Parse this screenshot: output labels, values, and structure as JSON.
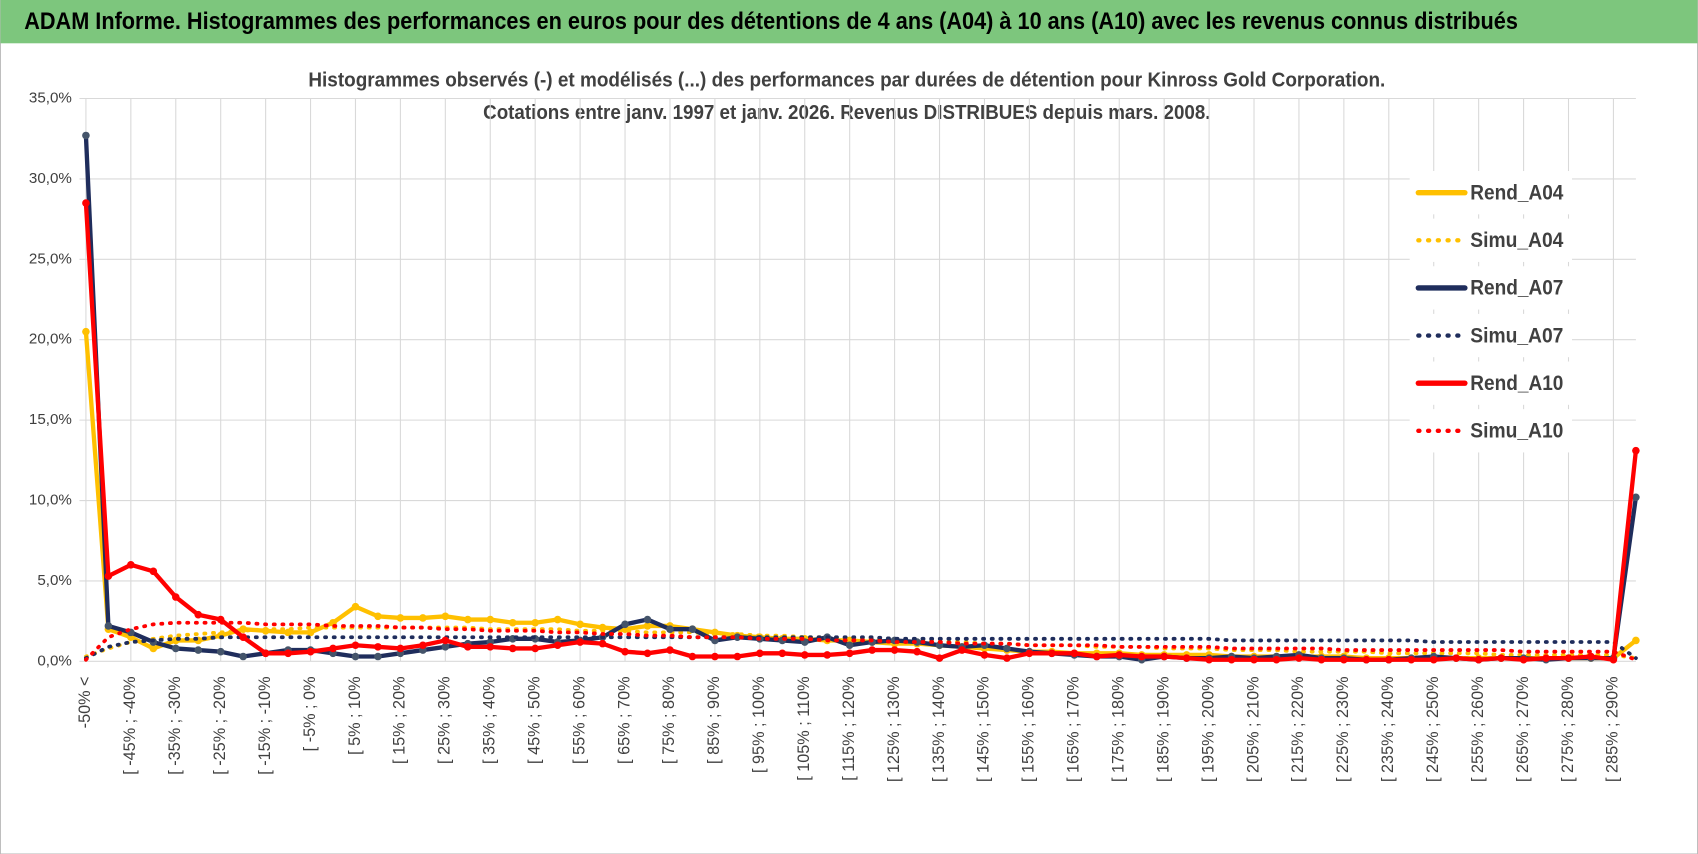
{
  "header": {
    "title": "ADAM Informe. Histogrammes des performances en euros pour des détentions de 4 ans (A04) à 10 ans (A10) avec les revenus connus distribués"
  },
  "chart_data": {
    "type": "line",
    "title": "Histogrammes observés (-) et modélisés (...) des performances par durées de détention pour Kinross Gold Corporation.",
    "subtitle": "Cotations entre janv. 1997 et janv. 2026. Revenus DISTRIBUES depuis mars. 2008.",
    "categories": [
      "-50% <",
      null,
      "[ -45% ; -40%",
      null,
      "[ -35% ; -30%",
      null,
      "[ -25% ; -20%",
      null,
      "[ -15% ; -10%",
      null,
      "[ -5% ; 0%",
      null,
      "[ 5% ; 10%",
      null,
      "[ 15% ; 20%",
      null,
      "[ 25% ; 30%",
      null,
      "[ 35% ; 40%",
      null,
      "[ 45% ; 50%",
      null,
      "[ 55% ; 60%",
      null,
      "[ 65% ; 70%",
      null,
      "[ 75% ; 80%",
      null,
      "[ 85% ; 90%",
      null,
      "[ 95% ; 100%",
      null,
      "[ 105% ; 110%",
      null,
      "[ 115% ; 120%",
      null,
      "[ 125% ; 130%",
      null,
      "[ 135% ; 140%",
      null,
      "[ 145% ; 150%",
      null,
      "[ 155% ; 160%",
      null,
      "[ 165% ; 170%",
      null,
      "[ 175% ; 180%",
      null,
      "[ 185% ; 190%",
      null,
      "[ 195% ; 200%",
      null,
      "[ 205% ; 210%",
      null,
      "[ 215% ; 220%",
      null,
      "[ 225% ; 230%",
      null,
      "[ 235% ; 240%",
      null,
      "[ 245% ; 250%",
      null,
      "[ 255% ; 260%",
      null,
      "[ 265% ; 270%",
      null,
      "[ 275% ; 280%",
      null,
      "[ 285% ; 290%",
      null
    ],
    "series": [
      {
        "name": "Rend_A04",
        "color": "#ffc000",
        "style": "solid",
        "values": [
          20.5,
          2.0,
          1.5,
          0.8,
          1.3,
          1.3,
          1.6,
          2.0,
          1.9,
          1.8,
          1.8,
          2.4,
          3.4,
          2.8,
          2.7,
          2.7,
          2.8,
          2.6,
          2.6,
          2.4,
          2.4,
          2.6,
          2.3,
          2.1,
          2.0,
          2.2,
          2.2,
          2.0,
          1.8,
          1.6,
          1.5,
          1.4,
          1.4,
          1.3,
          1.3,
          1.2,
          1.1,
          1.1,
          1.0,
          0.9,
          0.8,
          0.7,
          0.6,
          0.6,
          0.5,
          0.5,
          0.5,
          0.4,
          0.4,
          0.4,
          0.4,
          0.3,
          0.3,
          0.3,
          0.3,
          0.3,
          0.3,
          0.2,
          0.2,
          0.2,
          0.2,
          0.2,
          0.2,
          0.2,
          0.2,
          0.2,
          0.2,
          0.2,
          0.2,
          1.3
        ]
      },
      {
        "name": "Simu_A04",
        "color": "#ffc000",
        "style": "dotted",
        "values": [
          0.3,
          0.8,
          1.2,
          1.4,
          1.6,
          1.7,
          1.8,
          1.9,
          2.0,
          2.0,
          2.1,
          2.1,
          2.1,
          2.1,
          2.1,
          2.1,
          2.1,
          2.1,
          2.0,
          2.0,
          2.0,
          2.0,
          1.9,
          1.9,
          1.9,
          1.8,
          1.8,
          1.8,
          1.7,
          1.7,
          1.6,
          1.6,
          1.5,
          1.5,
          1.4,
          1.4,
          1.3,
          1.3,
          1.2,
          1.2,
          1.1,
          1.1,
          1.0,
          1.0,
          1.0,
          0.9,
          0.9,
          0.9,
          0.8,
          0.8,
          0.8,
          0.7,
          0.7,
          0.7,
          0.6,
          0.6,
          0.6,
          0.6,
          0.5,
          0.5,
          0.5,
          0.5,
          0.5,
          0.4,
          0.4,
          0.4,
          0.4,
          0.4,
          0.4,
          0.2
        ]
      },
      {
        "name": "Rend_A07",
        "color": "#1f2d5c",
        "style": "solid",
        "values": [
          32.7,
          2.2,
          1.8,
          1.2,
          0.8,
          0.7,
          0.6,
          0.3,
          0.5,
          0.7,
          0.7,
          0.5,
          0.3,
          0.3,
          0.5,
          0.7,
          0.9,
          1.1,
          1.2,
          1.4,
          1.4,
          1.2,
          1.3,
          1.5,
          2.3,
          2.6,
          2.0,
          2.0,
          1.3,
          1.5,
          1.4,
          1.3,
          1.2,
          1.5,
          1.0,
          1.2,
          1.3,
          1.2,
          1.0,
          0.9,
          1.0,
          0.8,
          0.6,
          0.5,
          0.4,
          0.3,
          0.3,
          0.1,
          0.3,
          0.2,
          0.2,
          0.3,
          0.2,
          0.3,
          0.4,
          0.2,
          0.2,
          0.1,
          0.1,
          0.2,
          0.3,
          0.2,
          0.1,
          0.2,
          0.2,
          0.1,
          0.2,
          0.2,
          0.2,
          10.2
        ]
      },
      {
        "name": "Simu_A07",
        "color": "#1f2d5c",
        "style": "dotted",
        "values": [
          0.2,
          0.9,
          1.2,
          1.3,
          1.4,
          1.4,
          1.5,
          1.5,
          1.5,
          1.5,
          1.5,
          1.5,
          1.5,
          1.5,
          1.5,
          1.5,
          1.5,
          1.5,
          1.5,
          1.5,
          1.5,
          1.5,
          1.5,
          1.5,
          1.5,
          1.5,
          1.5,
          1.5,
          1.5,
          1.5,
          1.5,
          1.5,
          1.5,
          1.5,
          1.5,
          1.5,
          1.4,
          1.4,
          1.4,
          1.4,
          1.4,
          1.4,
          1.4,
          1.4,
          1.4,
          1.4,
          1.4,
          1.4,
          1.4,
          1.4,
          1.4,
          1.3,
          1.3,
          1.3,
          1.3,
          1.3,
          1.3,
          1.3,
          1.3,
          1.3,
          1.2,
          1.2,
          1.2,
          1.2,
          1.2,
          1.2,
          1.2,
          1.2,
          1.2,
          0.2
        ]
      },
      {
        "name": "Rend_A10",
        "color": "#ff0000",
        "style": "solid",
        "values": [
          28.5,
          5.3,
          6.0,
          5.6,
          4.0,
          2.9,
          2.6,
          1.5,
          0.5,
          0.5,
          0.6,
          0.8,
          1.0,
          0.9,
          0.8,
          1.0,
          1.3,
          0.9,
          0.9,
          0.8,
          0.8,
          1.0,
          1.2,
          1.1,
          0.6,
          0.5,
          0.7,
          0.3,
          0.3,
          0.3,
          0.5,
          0.5,
          0.4,
          0.4,
          0.5,
          0.7,
          0.7,
          0.6,
          0.2,
          0.7,
          0.4,
          0.2,
          0.5,
          0.5,
          0.5,
          0.3,
          0.4,
          0.3,
          0.3,
          0.2,
          0.1,
          0.1,
          0.1,
          0.1,
          0.2,
          0.1,
          0.1,
          0.1,
          0.1,
          0.1,
          0.1,
          0.2,
          0.1,
          0.2,
          0.1,
          0.2,
          0.2,
          0.3,
          0.1,
          13.1
        ]
      },
      {
        "name": "Simu_A10",
        "color": "#ff0000",
        "style": "dotted",
        "values": [
          0.1,
          1.5,
          2.0,
          2.3,
          2.4,
          2.4,
          2.4,
          2.4,
          2.3,
          2.3,
          2.3,
          2.2,
          2.2,
          2.2,
          2.1,
          2.1,
          2.0,
          2.0,
          1.9,
          1.9,
          1.9,
          1.8,
          1.8,
          1.7,
          1.7,
          1.6,
          1.6,
          1.5,
          1.5,
          1.5,
          1.4,
          1.4,
          1.4,
          1.3,
          1.3,
          1.3,
          1.2,
          1.2,
          1.2,
          1.1,
          1.1,
          1.1,
          1.0,
          1.0,
          1.0,
          1.0,
          0.9,
          0.9,
          0.9,
          0.9,
          0.9,
          0.8,
          0.8,
          0.8,
          0.8,
          0.8,
          0.7,
          0.7,
          0.7,
          0.7,
          0.7,
          0.7,
          0.7,
          0.7,
          0.6,
          0.6,
          0.6,
          0.6,
          0.6,
          0.1
        ]
      }
    ],
    "ylim": [
      0,
      35
    ],
    "yticks": [
      {
        "value": 0,
        "label": "0,0%"
      },
      {
        "value": 5,
        "label": "5,0%"
      },
      {
        "value": 10,
        "label": "10,0%"
      },
      {
        "value": 15,
        "label": "15,0%"
      },
      {
        "value": 20,
        "label": "20,0%"
      },
      {
        "value": 25,
        "label": "25,0%"
      },
      {
        "value": 30,
        "label": "30,0%"
      },
      {
        "value": 35,
        "label": "35,0%"
      }
    ],
    "grid": true,
    "legend": "right"
  }
}
